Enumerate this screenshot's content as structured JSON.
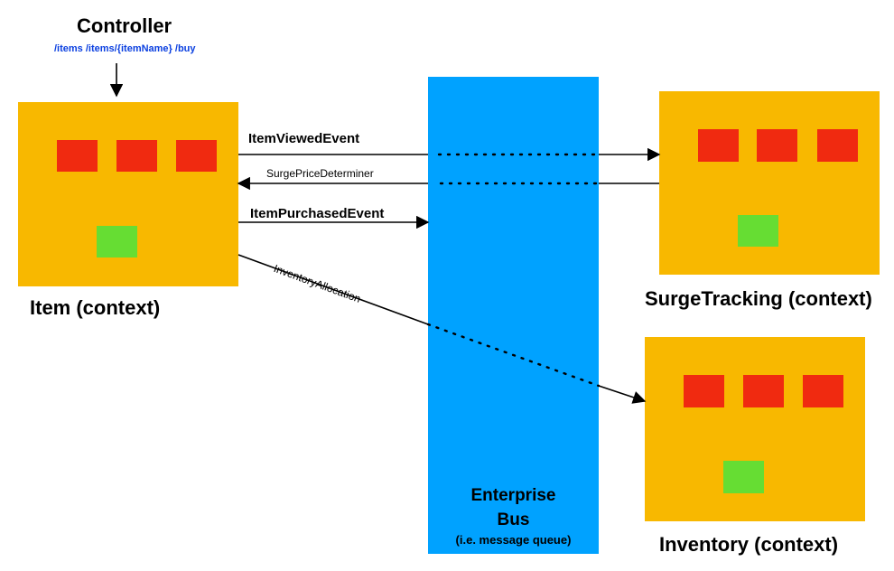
{
  "controller": {
    "title": "Controller",
    "endpoints": "/items  /items/{itemName}  /buy"
  },
  "bus": {
    "title_line1": "Enterprise",
    "title_line2": "Bus",
    "subtitle": "(i.e. message queue)"
  },
  "contexts": {
    "item": "Item (context)",
    "surge": "SurgeTracking (context)",
    "inventory": "Inventory (context)"
  },
  "messages": {
    "item_viewed": "ItemViewedEvent",
    "surge_price": "SurgePriceDeterminer",
    "item_purchased": "ItemPurchasedEvent",
    "inventory_allocation": "InventoryAllocation"
  },
  "colors": {
    "context": "#f8b800",
    "component_red": "#f02a10",
    "component_green": "#66dd33",
    "bus": "#00a2ff",
    "endpoint_text": "#0a3fe0"
  }
}
